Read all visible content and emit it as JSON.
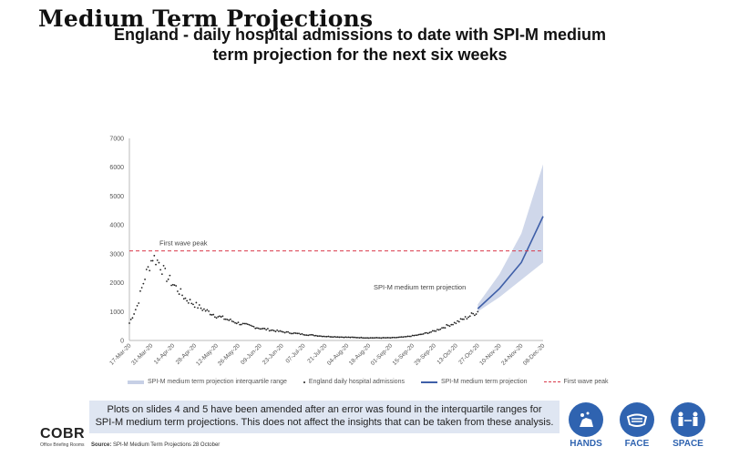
{
  "page": {
    "title": "Medium Term Projections"
  },
  "chart_data": {
    "type": "line",
    "title_line1": "England - daily hospital admissions to date with SPI-M medium",
    "title_line2": "term projection for the next six weeks",
    "ylim": [
      0,
      7000
    ],
    "yticks": [
      "0",
      "1000",
      "2000",
      "3000",
      "4000",
      "5000",
      "6000",
      "7000"
    ],
    "x_start": "2020-03-17",
    "x_end": "2020-12-08",
    "xticks": [
      "17-Mar-20",
      "31-Mar-20",
      "14-Apr-20",
      "28-Apr-20",
      "12-May-20",
      "26-May-20",
      "09-Jun-20",
      "23-Jun-20",
      "07-Jul-20",
      "21-Jul-20",
      "04-Aug-20",
      "18-Aug-20",
      "01-Sep-20",
      "15-Sep-20",
      "29-Sep-20",
      "13-Oct-20",
      "27-Oct-20",
      "10-Nov-20",
      "24-Nov-20",
      "08-Dec-20"
    ],
    "first_wave_peak": 3100,
    "annotations": {
      "first_wave": "First wave peak",
      "projection": "SPI-M medium term projection"
    },
    "legend": [
      "SPI-M medium term projection interquartile range",
      "England daily hospital admissions",
      "SPI-M medium term projection",
      "First wave peak"
    ],
    "admissions_anchors": [
      [
        "2020-03-17",
        600
      ],
      [
        "2020-03-22",
        1200
      ],
      [
        "2020-03-27",
        2200
      ],
      [
        "2020-04-01",
        2900
      ],
      [
        "2020-04-05",
        2700
      ],
      [
        "2020-04-10",
        2200
      ],
      [
        "2020-04-15",
        1900
      ],
      [
        "2020-04-22",
        1450
      ],
      [
        "2020-05-01",
        1150
      ],
      [
        "2020-05-12",
        850
      ],
      [
        "2020-05-26",
        600
      ],
      [
        "2020-06-09",
        420
      ],
      [
        "2020-06-23",
        300
      ],
      [
        "2020-07-07",
        210
      ],
      [
        "2020-07-21",
        140
      ],
      [
        "2020-08-04",
        110
      ],
      [
        "2020-08-18",
        90
      ],
      [
        "2020-09-01",
        90
      ],
      [
        "2020-09-10",
        120
      ],
      [
        "2020-09-20",
        200
      ],
      [
        "2020-09-29",
        320
      ],
      [
        "2020-10-06",
        480
      ],
      [
        "2020-10-13",
        620
      ],
      [
        "2020-10-20",
        800
      ],
      [
        "2020-10-27",
        1000
      ]
    ],
    "projection": {
      "central": [
        [
          "2020-10-27",
          1100
        ],
        [
          "2020-11-10",
          1800
        ],
        [
          "2020-11-24",
          2700
        ],
        [
          "2020-12-08",
          4300
        ]
      ],
      "lower": [
        [
          "2020-10-27",
          1000
        ],
        [
          "2020-11-10",
          1500
        ],
        [
          "2020-11-24",
          2100
        ],
        [
          "2020-12-08",
          2700
        ]
      ],
      "upper": [
        [
          "2020-10-27",
          1250
        ],
        [
          "2020-11-10",
          2300
        ],
        [
          "2020-11-24",
          3700
        ],
        [
          "2020-12-08",
          6100
        ]
      ]
    },
    "colors": {
      "band": "#c7d0e6",
      "line": "#3f5fa8",
      "peak": "#d9394a",
      "dots": "#222222",
      "axis": "#bbbbbb"
    }
  },
  "note": {
    "line1": "Plots on slides 4 and 5 have been amended after an error was found in the interquartile ranges for",
    "line2": "SPI-M medium term projections. This does not affect the insights that can be taken from these analysis."
  },
  "logo": {
    "big": "COBR",
    "small": "Office Briefing Rooms"
  },
  "source": {
    "label": "Source:",
    "text": "SPI-M Medium Term Projections 28 October"
  },
  "badges": [
    {
      "label": "HANDS",
      "icon": "hands-wash-icon"
    },
    {
      "label": "FACE",
      "icon": "face-mask-icon"
    },
    {
      "label": "SPACE",
      "icon": "social-distance-icon"
    }
  ]
}
